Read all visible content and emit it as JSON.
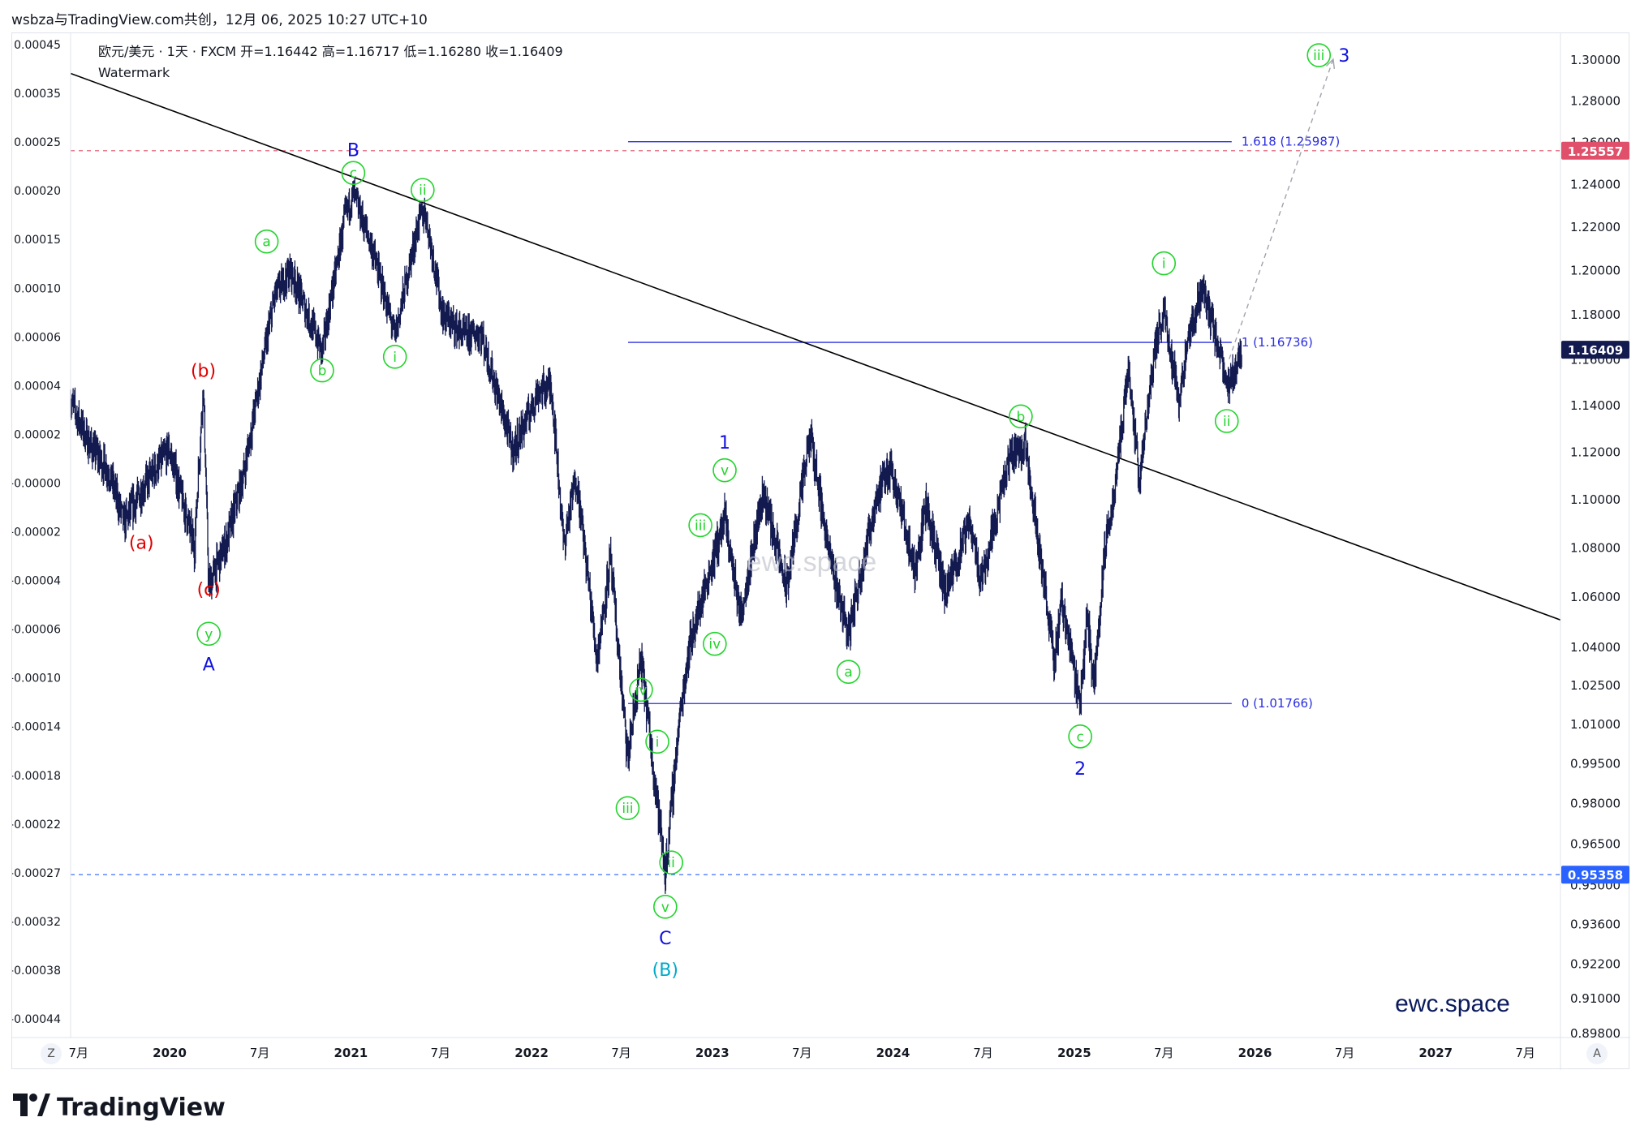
{
  "header": {
    "caption": "wsbza与TradingView.com共创，12月 06, 2025 10:27 UTC+10"
  },
  "legend": {
    "symbol_line": "欧元/美元 · 1天 · FXCM  开=1.16442  高=1.16717  低=1.16280  收=1.16409",
    "watermark_label": "Watermark"
  },
  "brand": {
    "name": "TradingView",
    "logo_icon": "tradingview-logo-icon",
    "watermark_center": "ewc.space",
    "watermark_corner": "ewc.space"
  },
  "axis_buttons": {
    "left": "Z",
    "right": "A"
  },
  "colors": {
    "candles": "#131a4f",
    "trendline": "#000000",
    "fib": "#2a2ee0",
    "resistance": "#e0506a",
    "support": "#2962ff",
    "wave_green": "#21d42b",
    "wave_red": "#e00000",
    "wave_blue": "#1010e0",
    "wave_cyan": "#00a9c8",
    "price_tag_dark": "#131a4f"
  },
  "chart_data": {
    "type": "candlestick",
    "symbol": "EUR/USD",
    "timeframe": "1D",
    "right_axis_ticks": [
      "1.30000",
      "1.28000",
      "1.26000",
      "1.24000",
      "1.22000",
      "1.20000",
      "1.18000",
      "1.16000",
      "1.14000",
      "1.12000",
      "1.10000",
      "1.08000",
      "1.06000",
      "1.04000",
      "1.02500",
      "1.01000",
      "0.99500",
      "0.98000",
      "0.96500",
      "0.95000",
      "0.93600",
      "0.92200",
      "0.91000",
      "0.89800"
    ],
    "left_axis_ticks": [
      "0.00045",
      "0.00035",
      "0.00025",
      "0.00020",
      "0.00015",
      "0.00010",
      "0.00006",
      "0.00004",
      "0.00002",
      "-0.00000",
      "-0.00002",
      "-0.00004",
      "-0.00006",
      "-0.00010",
      "-0.00014",
      "-0.00018",
      "-0.00022",
      "-0.00027",
      "-0.00032",
      "-0.00038",
      "-0.00044"
    ],
    "x_ticks": [
      "7月",
      "2020",
      "7月",
      "2021",
      "7月",
      "2022",
      "7月",
      "2023",
      "7月",
      "2024",
      "7月",
      "2025",
      "7月",
      "2026",
      "7月",
      "2027",
      "7月"
    ],
    "x_tick_dates": [
      "2019-07-01",
      "2020-01-01",
      "2020-07-01",
      "2021-01-01",
      "2021-07-01",
      "2022-01-01",
      "2022-07-01",
      "2023-01-01",
      "2023-07-01",
      "2024-01-01",
      "2024-07-01",
      "2025-01-01",
      "2025-07-01",
      "2026-01-01",
      "2026-07-01",
      "2027-01-01",
      "2027-07-01"
    ],
    "x_range": [
      "2019-06-15",
      "2027-09-10"
    ],
    "price_tags": [
      {
        "label": "1.25557",
        "value": 1.25557,
        "style": "resistance"
      },
      {
        "label": "1.16409",
        "value": 1.16409,
        "style": "last"
      },
      {
        "label": "0.95358",
        "value": 0.95358,
        "style": "support"
      }
    ],
    "fib_levels": [
      {
        "label": "1.618 (1.25987)",
        "value": 1.25987
      },
      {
        "label": "1 (1.16736)",
        "value": 1.16736
      },
      {
        "label": "0 (1.01766)",
        "value": 1.01766
      }
    ],
    "fib_range": [
      "2022-07-15",
      "2025-11-15"
    ],
    "trendline": [
      [
        "2019-06-15",
        1.293
      ],
      [
        "2027-09-10",
        1.0505
      ]
    ],
    "projection": [
      [
        "2025-11-10",
        1.16
      ],
      [
        "2026-06-08",
        1.3
      ]
    ],
    "price_path": [
      [
        "2019-06-15",
        1.142
      ],
      [
        "2019-07-20",
        1.124
      ],
      [
        "2019-09-01",
        1.111
      ],
      [
        "2019-10-01",
        1.09
      ],
      [
        "2019-11-15",
        1.107
      ],
      [
        "2019-12-31",
        1.121
      ],
      [
        "2020-02-20",
        1.08
      ],
      [
        "2020-03-09",
        1.148
      ],
      [
        "2020-03-20",
        1.064
      ],
      [
        "2020-04-25",
        1.082
      ],
      [
        "2020-05-31",
        1.112
      ],
      [
        "2020-07-31",
        1.188
      ],
      [
        "2020-09-01",
        1.2
      ],
      [
        "2020-11-04",
        1.163
      ],
      [
        "2020-12-20",
        1.224
      ],
      [
        "2021-01-06",
        1.235
      ],
      [
        "2021-02-10",
        1.212
      ],
      [
        "2021-03-31",
        1.17
      ],
      [
        "2021-05-20",
        1.224
      ],
      [
        "2021-06-01",
        1.226
      ],
      [
        "2021-07-05",
        1.18
      ],
      [
        "2021-08-20",
        1.17
      ],
      [
        "2021-09-20",
        1.172
      ],
      [
        "2021-11-24",
        1.12
      ],
      [
        "2022-01-15",
        1.146
      ],
      [
        "2022-02-10",
        1.148
      ],
      [
        "2022-03-07",
        1.081
      ],
      [
        "2022-04-01",
        1.11
      ],
      [
        "2022-05-13",
        1.035
      ],
      [
        "2022-06-09",
        1.075
      ],
      [
        "2022-07-14",
        0.996
      ],
      [
        "2022-08-10",
        1.035
      ],
      [
        "2022-09-28",
        0.954
      ],
      [
        "2022-10-26",
        1.01
      ],
      [
        "2022-11-15",
        1.04
      ],
      [
        "2023-01-26",
        1.092
      ],
      [
        "2023-02-27",
        1.052
      ],
      [
        "2023-04-14",
        1.103
      ],
      [
        "2023-05-31",
        1.063
      ],
      [
        "2023-07-18",
        1.127
      ],
      [
        "2023-08-25",
        1.077
      ],
      [
        "2023-10-03",
        1.045
      ],
      [
        "2023-11-29",
        1.101
      ],
      [
        "2023-12-28",
        1.114
      ],
      [
        "2024-02-14",
        1.07
      ],
      [
        "2024-03-08",
        1.098
      ],
      [
        "2024-04-16",
        1.06
      ],
      [
        "2024-06-05",
        1.091
      ],
      [
        "2024-06-26",
        1.066
      ],
      [
        "2024-08-26",
        1.119
      ],
      [
        "2024-09-25",
        1.122
      ],
      [
        "2024-11-22",
        1.033
      ],
      [
        "2024-12-06",
        1.059
      ],
      [
        "2025-01-13",
        1.018
      ],
      [
        "2025-01-27",
        1.052
      ],
      [
        "2025-02-10",
        1.025
      ],
      [
        "2025-03-04",
        1.08
      ],
      [
        "2025-03-18",
        1.095
      ],
      [
        "2025-04-21",
        1.157
      ],
      [
        "2025-05-12",
        1.107
      ],
      [
        "2025-06-12",
        1.163
      ],
      [
        "2025-07-01",
        1.182
      ],
      [
        "2025-07-31",
        1.142
      ],
      [
        "2025-08-22",
        1.17
      ],
      [
        "2025-09-17",
        1.192
      ],
      [
        "2025-10-20",
        1.165
      ],
      [
        "2025-11-05",
        1.146
      ],
      [
        "2025-11-28",
        1.16
      ],
      [
        "2025-12-05",
        1.1641
      ]
    ],
    "wave_labels": [
      {
        "text": "(a)",
        "color": "red",
        "x": "2019-11-05",
        "y": 1.082,
        "circled": false
      },
      {
        "text": "(b)",
        "color": "red",
        "x": "2020-03-09",
        "y": 1.155,
        "circled": false
      },
      {
        "text": "(c)",
        "color": "red",
        "x": "2020-03-20",
        "y": 1.063,
        "circled": false
      },
      {
        "text": "y",
        "color": "green",
        "x": "2020-03-20",
        "y": 1.045,
        "circled": true
      },
      {
        "text": "A",
        "color": "blue",
        "x": "2020-03-20",
        "y": 1.033,
        "circled": false
      },
      {
        "text": "a",
        "color": "green",
        "x": "2020-07-15",
        "y": 1.213,
        "circled": true
      },
      {
        "text": "b",
        "color": "green",
        "x": "2020-11-04",
        "y": 1.155,
        "circled": true
      },
      {
        "text": "c",
        "color": "green",
        "x": "2021-01-06",
        "y": 1.245,
        "circled": true
      },
      {
        "text": "B",
        "color": "blue",
        "x": "2021-01-06",
        "y": 1.256,
        "circled": false
      },
      {
        "text": "ii",
        "color": "green",
        "x": "2021-05-26",
        "y": 1.237,
        "circled": true
      },
      {
        "text": "i",
        "color": "green",
        "x": "2021-03-31",
        "y": 1.161,
        "circled": true
      },
      {
        "text": "iv",
        "color": "green",
        "x": "2022-08-10",
        "y": 1.023,
        "circled": true
      },
      {
        "text": "iii",
        "color": "green",
        "x": "2022-07-14",
        "y": 0.978,
        "circled": true
      },
      {
        "text": "i",
        "color": "green",
        "x": "2022-09-12",
        "y": 1.003,
        "circled": true
      },
      {
        "text": "ii",
        "color": "green",
        "x": "2022-10-10",
        "y": 0.958,
        "circled": true
      },
      {
        "text": "v",
        "color": "green",
        "x": "2022-09-28",
        "y": 0.942,
        "circled": true
      },
      {
        "text": "C",
        "color": "blue",
        "x": "2022-09-28",
        "y": 0.931,
        "circled": false
      },
      {
        "text": "(B)",
        "color": "cyan",
        "x": "2022-09-28",
        "y": 0.9198,
        "circled": false
      },
      {
        "text": "iii",
        "color": "green",
        "x": "2022-12-08",
        "y": 1.089,
        "circled": true
      },
      {
        "text": "iv",
        "color": "green",
        "x": "2023-01-06",
        "y": 1.041,
        "circled": true
      },
      {
        "text": "v",
        "color": "green",
        "x": "2023-01-26",
        "y": 1.112,
        "circled": true
      },
      {
        "text": "1",
        "color": "blue",
        "x": "2023-01-26",
        "y": 1.124,
        "circled": false
      },
      {
        "text": "a",
        "color": "green",
        "x": "2023-10-03",
        "y": 1.03,
        "circled": true
      },
      {
        "text": "b",
        "color": "green",
        "x": "2024-09-15",
        "y": 1.135,
        "circled": true
      },
      {
        "text": "c",
        "color": "green",
        "x": "2025-01-13",
        "y": 1.005,
        "circled": true
      },
      {
        "text": "2",
        "color": "blue",
        "x": "2025-01-13",
        "y": 0.993,
        "circled": false
      },
      {
        "text": "i",
        "color": "green",
        "x": "2025-07-01",
        "y": 1.203,
        "circled": true
      },
      {
        "text": "ii",
        "color": "green",
        "x": "2025-11-05",
        "y": 1.133,
        "circled": true
      },
      {
        "text": "iii",
        "color": "green",
        "x": "2026-05-10",
        "y": 1.302,
        "circled": true
      },
      {
        "text": "3",
        "color": "blue",
        "x": "2026-06-30",
        "y": 1.302,
        "circled": false
      }
    ]
  }
}
